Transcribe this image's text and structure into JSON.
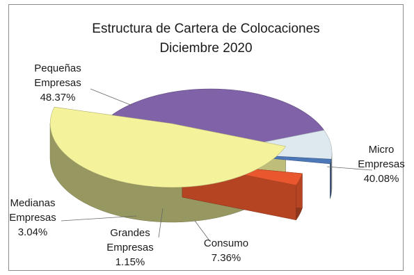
{
  "chart_data": {
    "type": "pie",
    "title": "Estructura de Cartera de Colocaciones",
    "subtitle": "Diciembre 2020",
    "slices": [
      {
        "name": "Micro Empresas",
        "label_lines": [
          "Micro",
          "Empresas",
          "40.08%"
        ],
        "value": 40.08,
        "color": "#7f62a8"
      },
      {
        "name": "Consumo",
        "label_lines": [
          "Consumo",
          "7.36%"
        ],
        "value": 7.36,
        "color": "#dde9ef"
      },
      {
        "name": "Grandes Empresas",
        "label_lines": [
          "Grandes",
          "Empresas",
          "1.15%"
        ],
        "value": 1.15,
        "color": "#4d78b8"
      },
      {
        "name": "Medianas Empresas",
        "label_lines": [
          "Medianas",
          "Empresas",
          "3.04%"
        ],
        "value": 3.04,
        "color": "#e8572d"
      },
      {
        "name": "Pequeñas Empresas",
        "label_lines": [
          "Pequeñas",
          "Empresas",
          "48.37%"
        ],
        "value": 48.37,
        "color": "#f4f39c"
      }
    ]
  }
}
